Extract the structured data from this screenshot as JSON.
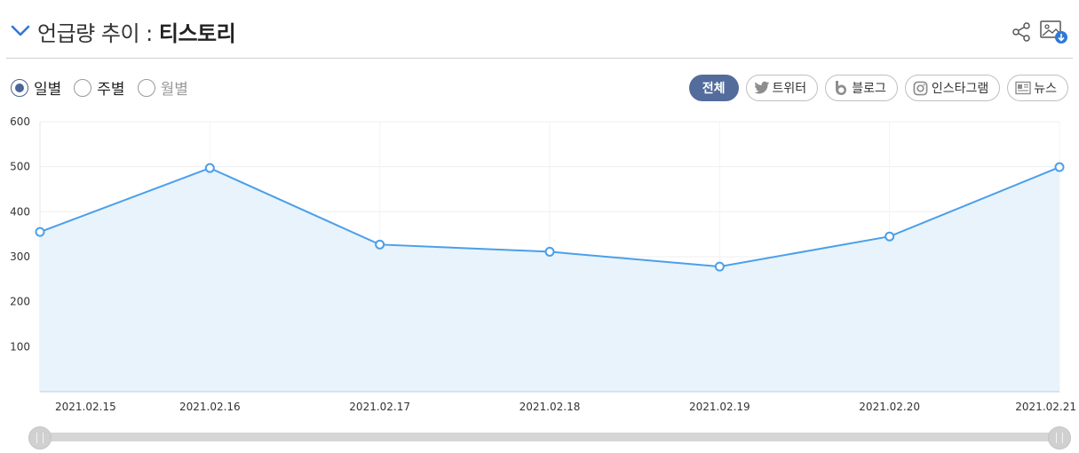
{
  "header": {
    "title_prefix": "언급량 추이 : ",
    "title_keyword": "티스토리"
  },
  "icons": {
    "collapse": "chevron-down-icon",
    "share": "share-icon",
    "download": "image-download-icon"
  },
  "period": {
    "options": [
      "일별",
      "주별",
      "월별"
    ],
    "selected": "일별"
  },
  "filters": {
    "items": [
      {
        "label": "전체",
        "icon": "",
        "active": true
      },
      {
        "label": "트위터",
        "icon": "twitter-icon",
        "active": false
      },
      {
        "label": "블로그",
        "icon": "blog-icon",
        "active": false
      },
      {
        "label": "인스타그램",
        "icon": "instagram-icon",
        "active": false
      },
      {
        "label": "뉴스",
        "icon": "news-icon",
        "active": false
      }
    ]
  },
  "colors": {
    "line": "#4b9fe9",
    "fill": "#e8f3fc",
    "accent": "#536c9c"
  },
  "range_slider": {
    "start": 0,
    "end": 1
  },
  "chart_data": {
    "type": "area",
    "categories": [
      "2021.02.15",
      "2021.02.16",
      "2021.02.17",
      "2021.02.18",
      "2021.02.19",
      "2021.02.20",
      "2021.02.21"
    ],
    "values": [
      355,
      497,
      327,
      311,
      278,
      345,
      499
    ],
    "ylim": [
      0,
      600
    ],
    "yticks": [
      100,
      200,
      300,
      400,
      500,
      600
    ],
    "grid": true,
    "legend": "none"
  }
}
